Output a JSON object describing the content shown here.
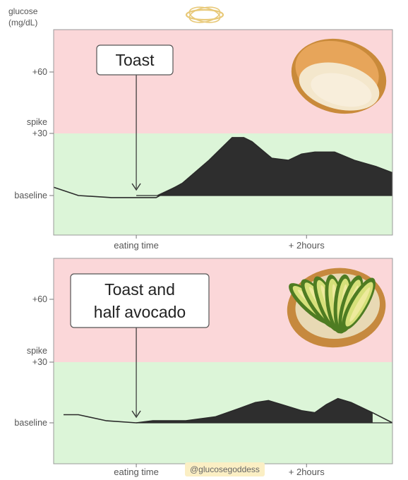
{
  "header": {
    "y_axis_title": "glucose\n(mg/dL)",
    "logo_icon": "halo-icon"
  },
  "watermark": "@glucosegoddess",
  "colors": {
    "spike_zone": "#fbd7d9",
    "normal_zone": "#dcf5d8",
    "area_fill": "#2e2e2e",
    "frame": "#9a9a9a",
    "logo_gold": "#e8c979",
    "watermark_bg": "#fbefc4"
  },
  "chart_data": [
    {
      "type": "area",
      "callout": "Toast",
      "image_icon": "toast-slice-icon",
      "x_tick_labels": [
        "eating time",
        "+ 2hours"
      ],
      "y_tick_labels": [
        "+60",
        "spike\n+30",
        "baseline"
      ],
      "y_ticks": [
        60,
        30,
        0
      ],
      "ylim": [
        -22,
        80
      ],
      "xlim": [
        -50,
        155
      ],
      "eating_time": 0,
      "two_hours": 103,
      "curve": {
        "x": [
          -50,
          -35,
          -15,
          0,
          12,
          28,
          44,
          58,
          65,
          70,
          82,
          92,
          100,
          108,
          120,
          132,
          145,
          155
        ],
        "y": [
          4,
          0,
          -1,
          -1,
          -1,
          6,
          17,
          28,
          28,
          26,
          18,
          17,
          20,
          21,
          21,
          17,
          14,
          11
        ]
      }
    },
    {
      "type": "area",
      "callout": "Toast and\nhalf avocado",
      "image_icon": "avocado-toast-icon",
      "x_tick_labels": [
        "eating time",
        "+ 2hours"
      ],
      "y_tick_labels": [
        "+60",
        "spike\n+30",
        "baseline"
      ],
      "y_ticks": [
        60,
        30,
        0
      ],
      "ylim": [
        -22,
        80
      ],
      "xlim": [
        -50,
        155
      ],
      "eating_time": 0,
      "two_hours": 103,
      "curve": {
        "x": [
          -44,
          -35,
          -18,
          0,
          10,
          30,
          48,
          62,
          72,
          80,
          88,
          100,
          108,
          115,
          122,
          130,
          143,
          155
        ],
        "y": [
          4,
          4,
          1,
          0,
          1,
          1,
          3,
          7,
          10,
          11,
          9,
          6,
          5,
          9,
          12,
          10,
          5,
          0
        ]
      }
    }
  ]
}
